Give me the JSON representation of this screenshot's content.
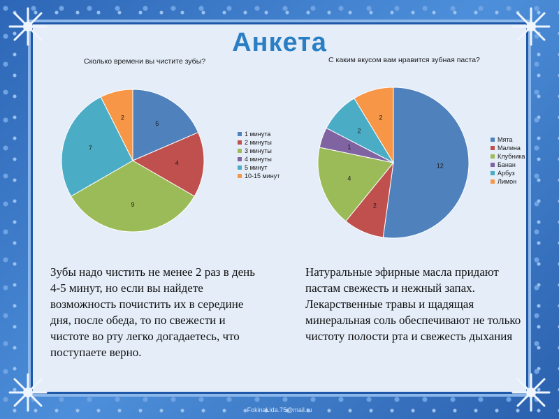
{
  "slide": {
    "title": "Анкета",
    "footer": "FokinaLida.75@mail.ru",
    "colors": {
      "background": "#3a78c6",
      "panel": "#e4edf8",
      "title": "#2a7fc4"
    }
  },
  "text_left": "Зубы надо чистить не менее 2 раз в день 4-5 минут, но если вы найдете возможность почистить их в середине дня, после обеда, то по свежести и чистоте во рту легко догадаетесь, что поступаете верно.",
  "text_right": "Натуральные эфирные масла придают пастам свежесть и нежный запах. Лекарственные травы и щадящая минеральная соль обеспечивают не только чистоту полости рта и свежесть дыхания",
  "chart_data": [
    {
      "type": "pie",
      "title": "Сколько времени вы чистите зубы?",
      "legend_position": "right",
      "categories": [
        "1 минута",
        "2 минуты",
        "3 минуты",
        "4 минуты",
        "5 минут",
        "10-15 минут"
      ],
      "values": [
        5,
        4,
        9,
        0,
        7,
        2
      ],
      "colors": [
        "#4f81bd",
        "#c0504d",
        "#9bbb59",
        "#8064a2",
        "#4bacc6",
        "#f79646"
      ]
    },
    {
      "type": "pie",
      "title": "С каким вкусом вам нравится зубная паста?",
      "legend_position": "right",
      "categories": [
        "Мята",
        "Малина",
        "Клубника",
        "Банан",
        "Арбуз",
        "Лимон"
      ],
      "values": [
        12,
        2,
        4,
        1,
        2,
        2
      ],
      "colors": [
        "#4f81bd",
        "#c0504d",
        "#9bbb59",
        "#8064a2",
        "#4bacc6",
        "#f79646"
      ]
    }
  ]
}
